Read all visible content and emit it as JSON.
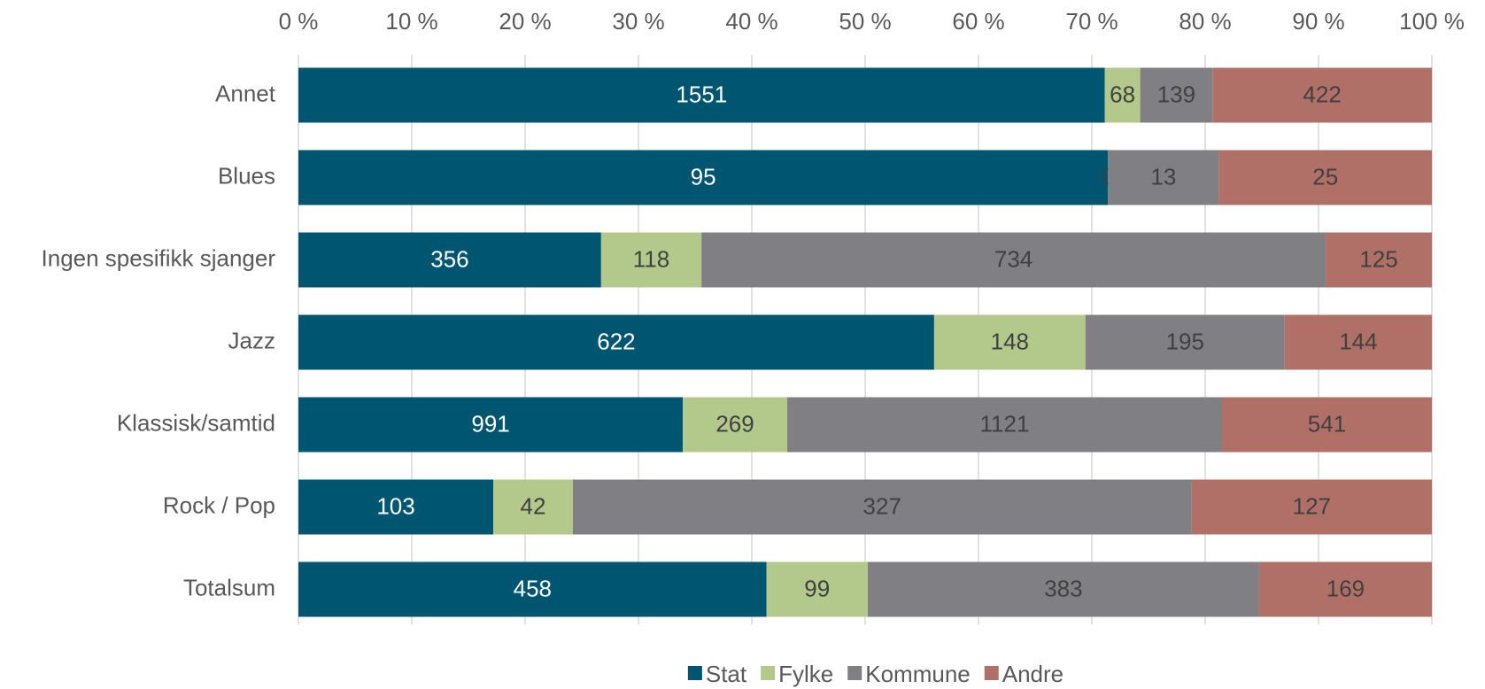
{
  "chart_data": {
    "type": "bar",
    "orientation": "horizontal",
    "stacked": "percent",
    "categories": [
      "Annet",
      "Blues",
      "Ingen spesifikk sjanger",
      "Jazz",
      "Klassisk/samtid",
      "Rock / Pop",
      "Totalsum"
    ],
    "series": [
      {
        "name": "Stat",
        "color": "#005571",
        "values": [
          1551,
          95,
          356,
          622,
          991,
          103,
          458
        ]
      },
      {
        "name": "Fylke",
        "color": "#b3c98b",
        "values": [
          68,
          0,
          118,
          148,
          269,
          42,
          99
        ]
      },
      {
        "name": "Kommune",
        "color": "#808084",
        "values": [
          139,
          13,
          734,
          195,
          1121,
          327,
          383
        ]
      },
      {
        "name": "Andre",
        "color": "#b07067",
        "values": [
          422,
          25,
          125,
          144,
          541,
          127,
          169
        ]
      }
    ],
    "xlim": [
      0,
      100
    ],
    "xticks": [
      {
        "value": 0,
        "label": "0 %"
      },
      {
        "value": 10,
        "label": "10 %"
      },
      {
        "value": 20,
        "label": "20 %"
      },
      {
        "value": 30,
        "label": "30 %"
      },
      {
        "value": 40,
        "label": "40 %"
      },
      {
        "value": 50,
        "label": "50 %"
      },
      {
        "value": 60,
        "label": "60 %"
      },
      {
        "value": 70,
        "label": "70 %"
      },
      {
        "value": 80,
        "label": "80 %"
      },
      {
        "value": 90,
        "label": "90 %"
      },
      {
        "value": 100,
        "label": "100 %"
      }
    ],
    "grid": true,
    "legend": "bottom"
  }
}
